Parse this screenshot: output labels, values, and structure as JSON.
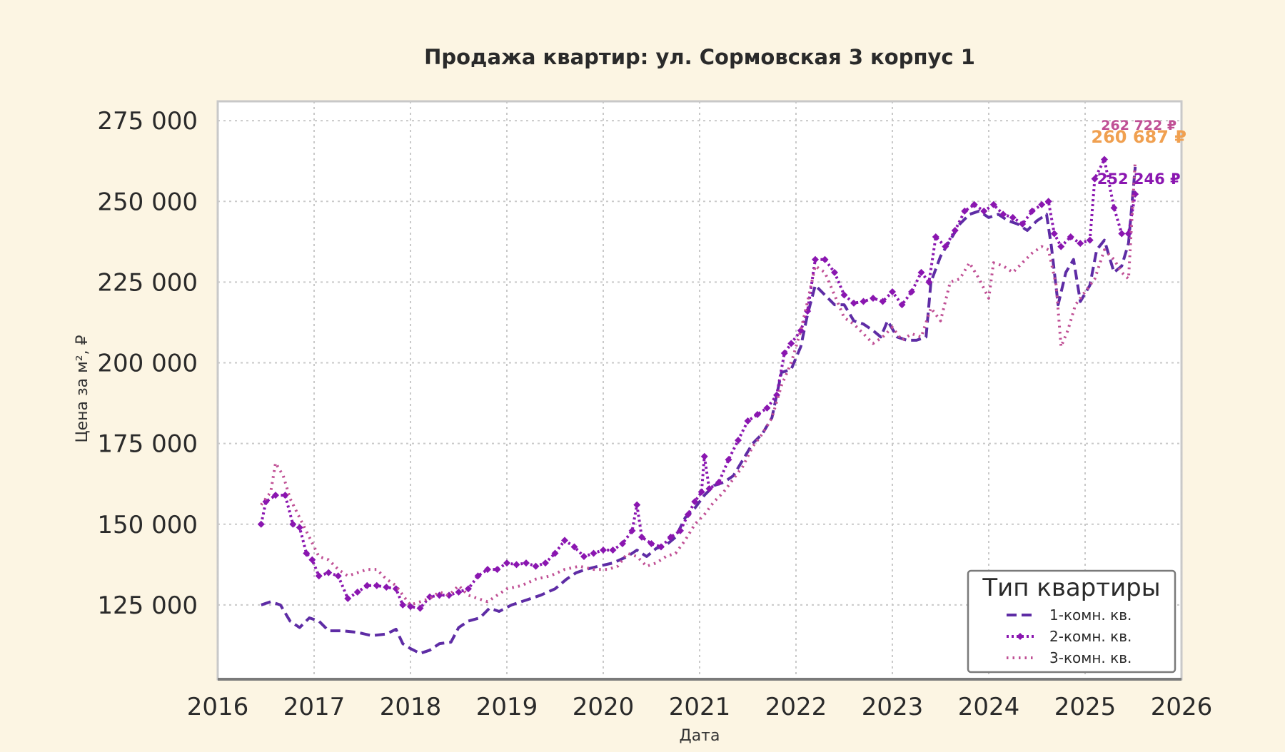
{
  "chart_data": {
    "type": "line",
    "title": "Продажа квартир: ул. Сормовская 3 корпус 1",
    "xlabel": "Дата",
    "ylabel": "Цена за м², ₽",
    "xlim": [
      2016,
      2026
    ],
    "ylim": [
      102000,
      281000
    ],
    "x_ticks": [
      "2016",
      "2017",
      "2018",
      "2019",
      "2020",
      "2021",
      "2022",
      "2023",
      "2024",
      "2025",
      "2026"
    ],
    "y_ticks": [
      "125 000",
      "150 000",
      "175 000",
      "200 000",
      "225 000",
      "250 000",
      "275 000"
    ],
    "grid": true,
    "legend": {
      "title": "Тип квартиры",
      "position": "bottom-right"
    },
    "series": [
      {
        "name": "1-комн. кв.",
        "color": "#5e2ca5",
        "style": "dashed",
        "points": [
          [
            2016.45,
            125000
          ],
          [
            2016.55,
            126000
          ],
          [
            2016.65,
            125000
          ],
          [
            2016.75,
            120000
          ],
          [
            2016.85,
            118000
          ],
          [
            2016.95,
            121000
          ],
          [
            2017.05,
            120000
          ],
          [
            2017.15,
            117000
          ],
          [
            2017.3,
            117000
          ],
          [
            2017.45,
            116500
          ],
          [
            2017.6,
            115500
          ],
          [
            2017.75,
            116000
          ],
          [
            2017.85,
            117500
          ],
          [
            2017.92,
            113000
          ],
          [
            2018.0,
            111500
          ],
          [
            2018.1,
            110000
          ],
          [
            2018.2,
            111000
          ],
          [
            2018.3,
            113000
          ],
          [
            2018.42,
            113500
          ],
          [
            2018.5,
            118000
          ],
          [
            2018.6,
            120000
          ],
          [
            2018.72,
            121000
          ],
          [
            2018.82,
            124000
          ],
          [
            2018.92,
            123000
          ],
          [
            2019.05,
            125000
          ],
          [
            2019.2,
            126500
          ],
          [
            2019.35,
            128000
          ],
          [
            2019.5,
            130000
          ],
          [
            2019.62,
            133000
          ],
          [
            2019.72,
            135000
          ],
          [
            2019.82,
            136000
          ],
          [
            2019.95,
            137000
          ],
          [
            2020.1,
            138000
          ],
          [
            2020.25,
            140000
          ],
          [
            2020.35,
            142000
          ],
          [
            2020.45,
            140000
          ],
          [
            2020.55,
            142500
          ],
          [
            2020.65,
            143500
          ],
          [
            2020.75,
            146000
          ],
          [
            2020.85,
            152000
          ],
          [
            2020.95,
            155000
          ],
          [
            2021.05,
            159000
          ],
          [
            2021.15,
            162000
          ],
          [
            2021.25,
            163000
          ],
          [
            2021.35,
            165000
          ],
          [
            2021.45,
            170000
          ],
          [
            2021.55,
            175000
          ],
          [
            2021.65,
            178000
          ],
          [
            2021.75,
            183000
          ],
          [
            2021.85,
            197000
          ],
          [
            2021.95,
            198000
          ],
          [
            2022.05,
            205000
          ],
          [
            2022.12,
            215000
          ],
          [
            2022.2,
            224000
          ],
          [
            2022.3,
            221000
          ],
          [
            2022.4,
            218000
          ],
          [
            2022.5,
            218000
          ],
          [
            2022.6,
            213000
          ],
          [
            2022.7,
            212000
          ],
          [
            2022.8,
            210000
          ],
          [
            2022.88,
            208000
          ],
          [
            2022.95,
            213000
          ],
          [
            2023.05,
            208000
          ],
          [
            2023.15,
            207000
          ],
          [
            2023.25,
            207000
          ],
          [
            2023.35,
            208000
          ],
          [
            2023.4,
            225000
          ],
          [
            2023.5,
            233000
          ],
          [
            2023.6,
            238000
          ],
          [
            2023.7,
            243000
          ],
          [
            2023.8,
            246000
          ],
          [
            2023.9,
            247000
          ],
          [
            2024.0,
            245000
          ],
          [
            2024.1,
            246000
          ],
          [
            2024.2,
            244000
          ],
          [
            2024.3,
            243000
          ],
          [
            2024.4,
            241000
          ],
          [
            2024.5,
            244000
          ],
          [
            2024.6,
            246000
          ],
          [
            2024.65,
            236000
          ],
          [
            2024.72,
            218000
          ],
          [
            2024.8,
            228000
          ],
          [
            2024.88,
            232000
          ],
          [
            2024.95,
            219000
          ],
          [
            2025.05,
            224000
          ],
          [
            2025.12,
            235000
          ],
          [
            2025.2,
            238000
          ],
          [
            2025.3,
            228000
          ],
          [
            2025.38,
            230000
          ],
          [
            2025.45,
            237000
          ],
          [
            2025.52,
            260687
          ]
        ]
      },
      {
        "name": "2-комн. кв.",
        "color": "#8a16b0",
        "style": "dotted-diamond",
        "points": [
          [
            2016.45,
            150000
          ],
          [
            2016.5,
            157000
          ],
          [
            2016.6,
            159000
          ],
          [
            2016.7,
            159000
          ],
          [
            2016.78,
            150000
          ],
          [
            2016.85,
            149000
          ],
          [
            2016.92,
            141000
          ],
          [
            2016.98,
            139000
          ],
          [
            2017.05,
            134000
          ],
          [
            2017.15,
            135000
          ],
          [
            2017.25,
            134000
          ],
          [
            2017.35,
            127000
          ],
          [
            2017.45,
            129000
          ],
          [
            2017.55,
            131000
          ],
          [
            2017.65,
            131000
          ],
          [
            2017.75,
            130500
          ],
          [
            2017.85,
            130000
          ],
          [
            2017.92,
            125000
          ],
          [
            2018.0,
            124500
          ],
          [
            2018.1,
            124000
          ],
          [
            2018.2,
            127500
          ],
          [
            2018.3,
            128000
          ],
          [
            2018.4,
            128000
          ],
          [
            2018.5,
            129000
          ],
          [
            2018.6,
            130000
          ],
          [
            2018.7,
            134000
          ],
          [
            2018.8,
            136000
          ],
          [
            2018.9,
            136000
          ],
          [
            2019.0,
            138000
          ],
          [
            2019.1,
            137500
          ],
          [
            2019.2,
            138000
          ],
          [
            2019.3,
            137000
          ],
          [
            2019.4,
            138000
          ],
          [
            2019.5,
            141000
          ],
          [
            2019.6,
            145000
          ],
          [
            2019.7,
            143000
          ],
          [
            2019.8,
            140000
          ],
          [
            2019.9,
            141000
          ],
          [
            2020.0,
            142000
          ],
          [
            2020.1,
            142000
          ],
          [
            2020.2,
            144000
          ],
          [
            2020.3,
            148000
          ],
          [
            2020.35,
            156000
          ],
          [
            2020.4,
            146000
          ],
          [
            2020.5,
            144000
          ],
          [
            2020.6,
            143000
          ],
          [
            2020.7,
            146000
          ],
          [
            2020.8,
            148000
          ],
          [
            2020.88,
            153000
          ],
          [
            2020.95,
            157000
          ],
          [
            2021.02,
            160000
          ],
          [
            2021.05,
            171000
          ],
          [
            2021.1,
            161000
          ],
          [
            2021.2,
            163000
          ],
          [
            2021.3,
            170000
          ],
          [
            2021.4,
            176000
          ],
          [
            2021.5,
            182000
          ],
          [
            2021.6,
            184000
          ],
          [
            2021.7,
            186000
          ],
          [
            2021.8,
            190000
          ],
          [
            2021.88,
            203000
          ],
          [
            2021.95,
            206000
          ],
          [
            2022.05,
            210000
          ],
          [
            2022.12,
            216000
          ],
          [
            2022.2,
            232000
          ],
          [
            2022.3,
            232000
          ],
          [
            2022.4,
            228000
          ],
          [
            2022.5,
            221000
          ],
          [
            2022.6,
            218500
          ],
          [
            2022.7,
            219000
          ],
          [
            2022.8,
            220000
          ],
          [
            2022.9,
            219000
          ],
          [
            2023.0,
            222000
          ],
          [
            2023.1,
            218000
          ],
          [
            2023.2,
            222000
          ],
          [
            2023.3,
            228000
          ],
          [
            2023.38,
            225000
          ],
          [
            2023.45,
            239000
          ],
          [
            2023.55,
            236000
          ],
          [
            2023.65,
            241000
          ],
          [
            2023.75,
            247000
          ],
          [
            2023.85,
            249000
          ],
          [
            2023.95,
            247000
          ],
          [
            2024.05,
            249000
          ],
          [
            2024.15,
            246000
          ],
          [
            2024.25,
            245000
          ],
          [
            2024.35,
            243000
          ],
          [
            2024.45,
            247000
          ],
          [
            2024.55,
            249000
          ],
          [
            2024.62,
            250000
          ],
          [
            2024.68,
            240000
          ],
          [
            2024.75,
            236000
          ],
          [
            2024.85,
            239000
          ],
          [
            2024.95,
            237000
          ],
          [
            2025.05,
            238000
          ],
          [
            2025.1,
            257000
          ],
          [
            2025.2,
            263000
          ],
          [
            2025.3,
            248000
          ],
          [
            2025.38,
            240000
          ],
          [
            2025.45,
            240000
          ],
          [
            2025.52,
            252246
          ]
        ]
      },
      {
        "name": "3-комн. кв.",
        "color": "#c05095",
        "style": "dotted",
        "points": [
          [
            2016.45,
            156000
          ],
          [
            2016.55,
            160000
          ],
          [
            2016.6,
            169000
          ],
          [
            2016.68,
            165000
          ],
          [
            2016.75,
            158000
          ],
          [
            2016.85,
            152000
          ],
          [
            2016.95,
            146000
          ],
          [
            2017.05,
            140000
          ],
          [
            2017.15,
            139000
          ],
          [
            2017.25,
            136000
          ],
          [
            2017.35,
            134000
          ],
          [
            2017.45,
            135000
          ],
          [
            2017.55,
            136000
          ],
          [
            2017.65,
            136000
          ],
          [
            2017.75,
            133000
          ],
          [
            2017.85,
            131000
          ],
          [
            2017.92,
            128000
          ],
          [
            2018.0,
            125000
          ],
          [
            2018.1,
            126000
          ],
          [
            2018.2,
            127000
          ],
          [
            2018.3,
            129000
          ],
          [
            2018.4,
            128000
          ],
          [
            2018.5,
            131000
          ],
          [
            2018.6,
            128000
          ],
          [
            2018.7,
            127000
          ],
          [
            2018.8,
            126000
          ],
          [
            2018.9,
            128000
          ],
          [
            2019.0,
            130000
          ],
          [
            2019.15,
            131000
          ],
          [
            2019.3,
            133000
          ],
          [
            2019.45,
            134000
          ],
          [
            2019.6,
            136000
          ],
          [
            2019.75,
            137000
          ],
          [
            2019.9,
            136000
          ],
          [
            2020.05,
            136000
          ],
          [
            2020.15,
            137000
          ],
          [
            2020.25,
            141000
          ],
          [
            2020.35,
            140000
          ],
          [
            2020.45,
            137000
          ],
          [
            2020.55,
            138000
          ],
          [
            2020.65,
            140000
          ],
          [
            2020.75,
            141000
          ],
          [
            2020.85,
            145000
          ],
          [
            2020.95,
            150000
          ],
          [
            2021.05,
            153000
          ],
          [
            2021.15,
            157000
          ],
          [
            2021.25,
            160000
          ],
          [
            2021.35,
            164000
          ],
          [
            2021.45,
            168000
          ],
          [
            2021.55,
            174000
          ],
          [
            2021.65,
            178000
          ],
          [
            2021.75,
            183000
          ],
          [
            2021.85,
            193000
          ],
          [
            2021.95,
            200000
          ],
          [
            2022.05,
            210000
          ],
          [
            2022.12,
            219000
          ],
          [
            2022.2,
            230000
          ],
          [
            2022.3,
            228000
          ],
          [
            2022.4,
            221000
          ],
          [
            2022.5,
            214000
          ],
          [
            2022.6,
            212000
          ],
          [
            2022.7,
            209000
          ],
          [
            2022.8,
            206000
          ],
          [
            2022.9,
            208000
          ],
          [
            2023.0,
            211000
          ],
          [
            2023.1,
            207000
          ],
          [
            2023.2,
            209000
          ],
          [
            2023.3,
            208000
          ],
          [
            2023.4,
            217000
          ],
          [
            2023.5,
            213000
          ],
          [
            2023.6,
            225000
          ],
          [
            2023.7,
            226000
          ],
          [
            2023.8,
            231000
          ],
          [
            2023.9,
            226000
          ],
          [
            2024.0,
            220000
          ],
          [
            2024.05,
            231000
          ],
          [
            2024.15,
            230000
          ],
          [
            2024.25,
            228000
          ],
          [
            2024.35,
            231000
          ],
          [
            2024.45,
            234000
          ],
          [
            2024.55,
            236000
          ],
          [
            2024.62,
            235000
          ],
          [
            2024.7,
            224000
          ],
          [
            2024.75,
            205000
          ],
          [
            2024.82,
            210000
          ],
          [
            2024.9,
            218000
          ],
          [
            2025.0,
            222000
          ],
          [
            2025.1,
            226000
          ],
          [
            2025.2,
            235000
          ],
          [
            2025.3,
            232000
          ],
          [
            2025.38,
            228000
          ],
          [
            2025.45,
            226000
          ],
          [
            2025.52,
            262722
          ]
        ]
      }
    ],
    "annotations": [
      {
        "series": "3-комн. кв.",
        "x": 2025.52,
        "y": 262722,
        "text": "262 722 ₽"
      },
      {
        "series": "1-комн. кв.",
        "x": 2025.52,
        "y": 260687,
        "text": "260 687 ₽"
      },
      {
        "series": "2-комн. кв.",
        "x": 2025.52,
        "y": 252246,
        "text": "252 246 ₽"
      }
    ]
  }
}
